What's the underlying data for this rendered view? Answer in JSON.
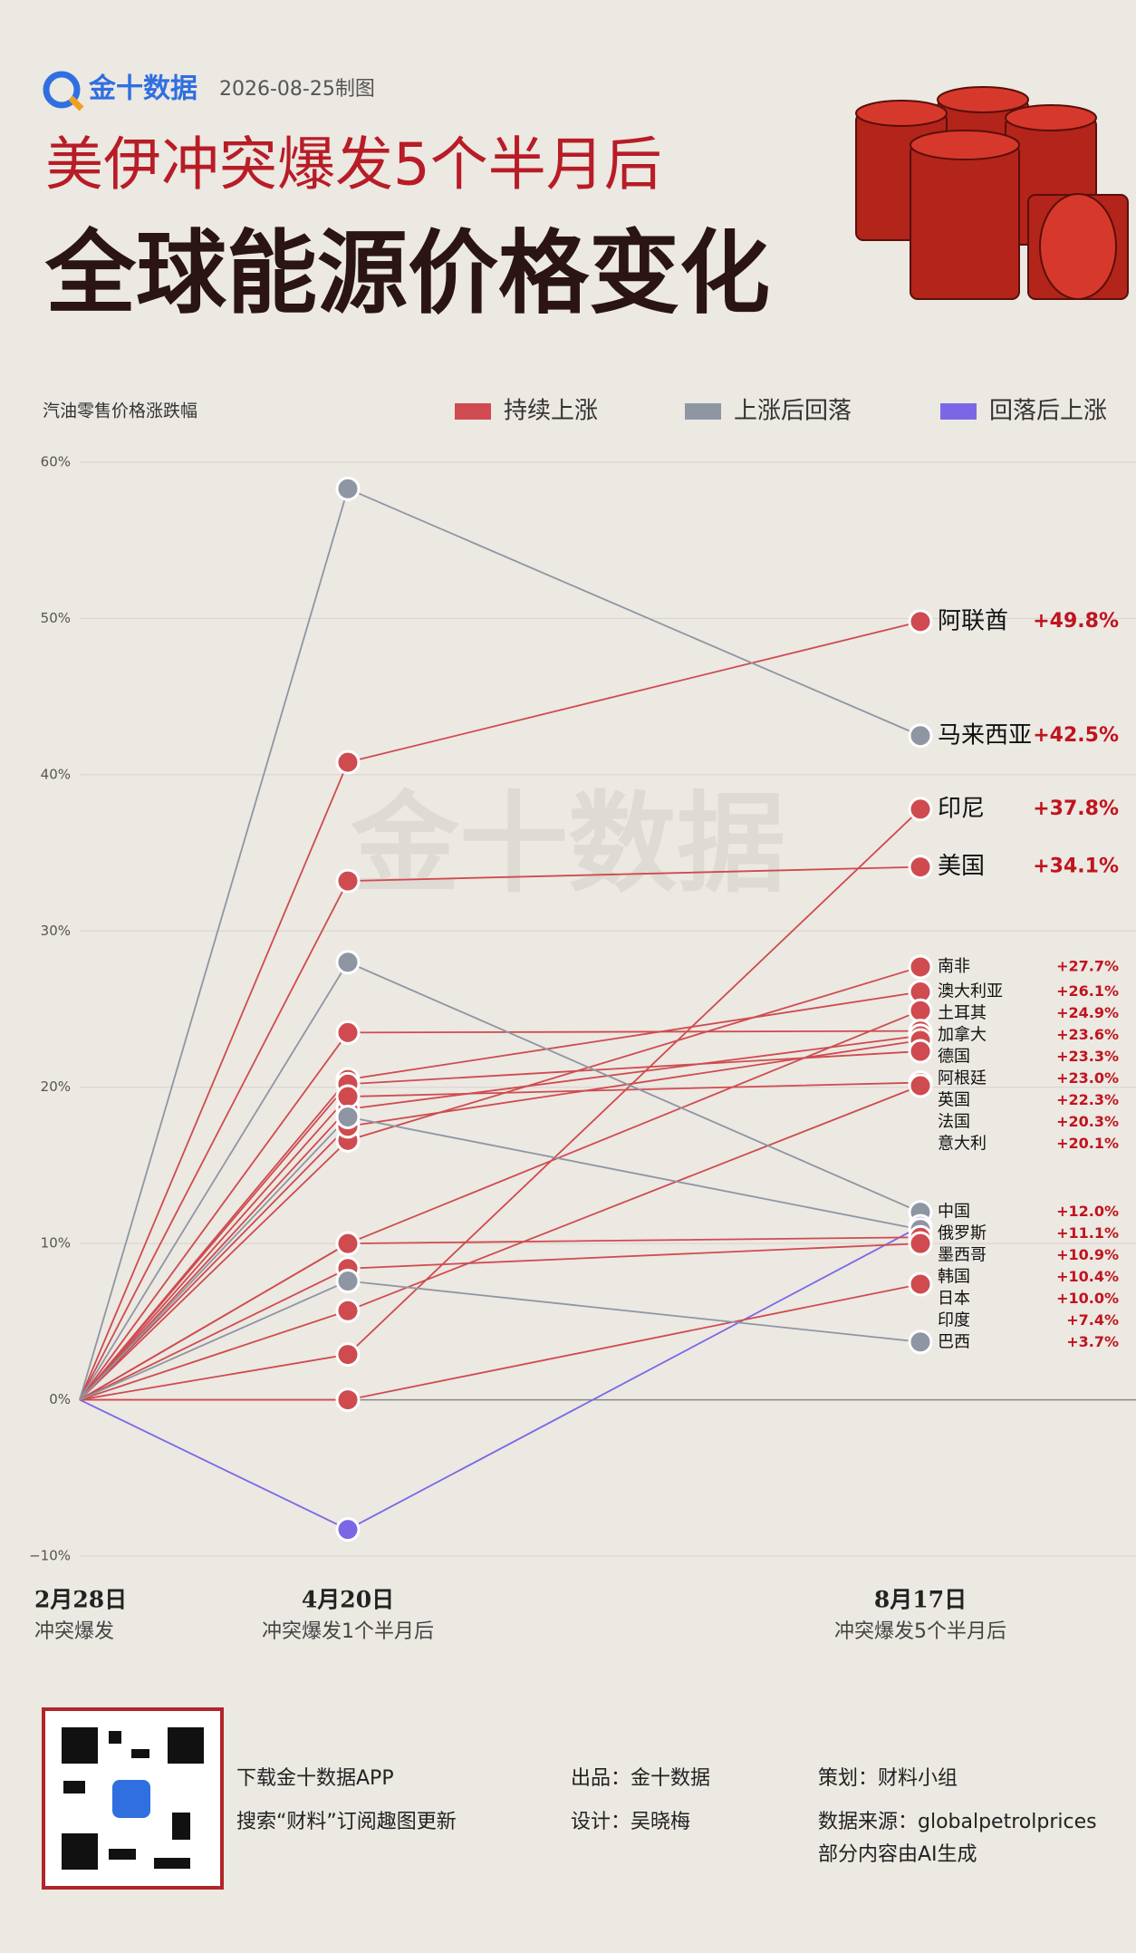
{
  "header": {
    "logo": "金十数据",
    "date": "2026-08-25制图",
    "title_line1": "美伊冲突爆发5个半月后",
    "title_line2": "全球能源价格变化"
  },
  "chart_data": {
    "type": "slope",
    "y_label": "汽油零售价格涨跌幅",
    "watermark": "金十数据",
    "legend": [
      {
        "name": "持续上涨",
        "color": "#cf4b4f"
      },
      {
        "name": "上涨后回落",
        "color": "#8e96a3"
      },
      {
        "name": "回落后上涨",
        "color": "#7b67e6"
      }
    ],
    "categories": [
      "2月28日",
      "4月20日",
      "8月17日"
    ],
    "category_notes": [
      "冲突爆发",
      "冲突爆发1个半月后",
      "冲突爆发5个半月后"
    ],
    "ylim": [
      -10,
      60
    ],
    "yticks": [
      {
        "value": -10,
        "label": "−10%"
      },
      {
        "value": 0,
        "label": "0%"
      },
      {
        "value": 10,
        "label": "10%"
      },
      {
        "value": 20,
        "label": "20%"
      },
      {
        "value": 30,
        "label": "30%"
      },
      {
        "value": 40,
        "label": "40%"
      },
      {
        "value": 50,
        "label": "50%"
      },
      {
        "value": 60,
        "label": "60%"
      }
    ],
    "grid": true,
    "series": [
      {
        "name": "阿联酋",
        "color": "#cf4b4f",
        "values": [
          0,
          40.8,
          49.8
        ],
        "value_labels": [
          null,
          null,
          "+49.8%"
        ]
      },
      {
        "name": "马来西亚",
        "color": "#8e96a3",
        "values": [
          0,
          58.3,
          42.5
        ],
        "value_labels": [
          null,
          null,
          "+42.5%"
        ]
      },
      {
        "name": "印尼",
        "color": "#cf4b4f",
        "values": [
          0,
          2.9,
          37.8
        ],
        "value_labels": [
          null,
          null,
          "+37.8%"
        ]
      },
      {
        "name": "美国",
        "color": "#cf4b4f",
        "values": [
          0,
          33.2,
          34.1
        ],
        "value_labels": [
          null,
          null,
          "+34.1%"
        ]
      },
      {
        "name": "南非",
        "color": "#cf4b4f",
        "values": [
          0,
          16.6,
          27.7
        ],
        "value_labels": [
          null,
          null,
          "+27.7%"
        ]
      },
      {
        "name": "澳大利亚",
        "color": "#cf4b4f",
        "values": [
          0,
          20.5,
          26.1
        ],
        "value_labels": [
          null,
          null,
          "+26.1%"
        ]
      },
      {
        "name": "土耳其",
        "color": "#cf4b4f",
        "values": [
          0,
          10.0,
          24.9
        ],
        "value_labels": [
          null,
          null,
          "+24.9%"
        ]
      },
      {
        "name": "加拿大",
        "color": "#cf4b4f",
        "values": [
          0,
          23.5,
          23.6
        ],
        "value_labels": [
          null,
          null,
          "+23.6%"
        ]
      },
      {
        "name": "德国",
        "color": "#cf4b4f",
        "values": [
          0,
          18.6,
          23.3
        ],
        "value_labels": [
          null,
          null,
          "+23.3%"
        ]
      },
      {
        "name": "阿根廷",
        "color": "#cf4b4f",
        "values": [
          0,
          17.5,
          23.0
        ],
        "value_labels": [
          null,
          null,
          "+23.0%"
        ]
      },
      {
        "name": "英国",
        "color": "#cf4b4f",
        "values": [
          0,
          20.2,
          22.3
        ],
        "value_labels": [
          null,
          null,
          "+22.3%"
        ]
      },
      {
        "name": "法国",
        "color": "#cf4b4f",
        "values": [
          0,
          19.4,
          20.3
        ],
        "value_labels": [
          null,
          null,
          "+20.3%"
        ]
      },
      {
        "name": "意大利",
        "color": "#cf4b4f",
        "values": [
          0,
          5.7,
          20.1
        ],
        "value_labels": [
          null,
          null,
          "+20.1%"
        ]
      },
      {
        "name": "中国",
        "color": "#8e96a3",
        "values": [
          0,
          28.0,
          12.0
        ],
        "value_labels": [
          null,
          null,
          "+12.0%"
        ]
      },
      {
        "name": "俄罗斯",
        "color": "#7b67e6",
        "values": [
          0,
          -8.3,
          11.1
        ],
        "value_labels": [
          null,
          null,
          "+11.1%"
        ]
      },
      {
        "name": "墨西哥",
        "color": "#8e96a3",
        "values": [
          0,
          18.1,
          10.9
        ],
        "value_labels": [
          null,
          null,
          "+10.9%"
        ]
      },
      {
        "name": "韩国",
        "color": "#cf4b4f",
        "values": [
          0,
          10.0,
          10.4
        ],
        "value_labels": [
          null,
          null,
          "+10.4%"
        ]
      },
      {
        "name": "日本",
        "color": "#cf4b4f",
        "values": [
          0,
          8.4,
          10.0
        ],
        "value_labels": [
          null,
          null,
          "+10.0%"
        ]
      },
      {
        "name": "印度",
        "color": "#cf4b4f",
        "values": [
          0,
          0,
          7.4
        ],
        "value_labels": [
          null,
          null,
          "+7.4%"
        ]
      },
      {
        "name": "巴西",
        "color": "#8e96a3",
        "values": [
          0,
          7.6,
          3.7
        ],
        "value_labels": [
          null,
          null,
          "+3.7%"
        ]
      }
    ]
  },
  "footer": {
    "app": "下载金十数据APP",
    "search": "搜索“财料”订阅趣图更新",
    "producer": "出品：金十数据",
    "designer": "设计：吴晓梅",
    "planner": "策划：财料小组",
    "source": "数据来源：globalpetrolprices",
    "ai_note": "部分内容由AI生成"
  }
}
